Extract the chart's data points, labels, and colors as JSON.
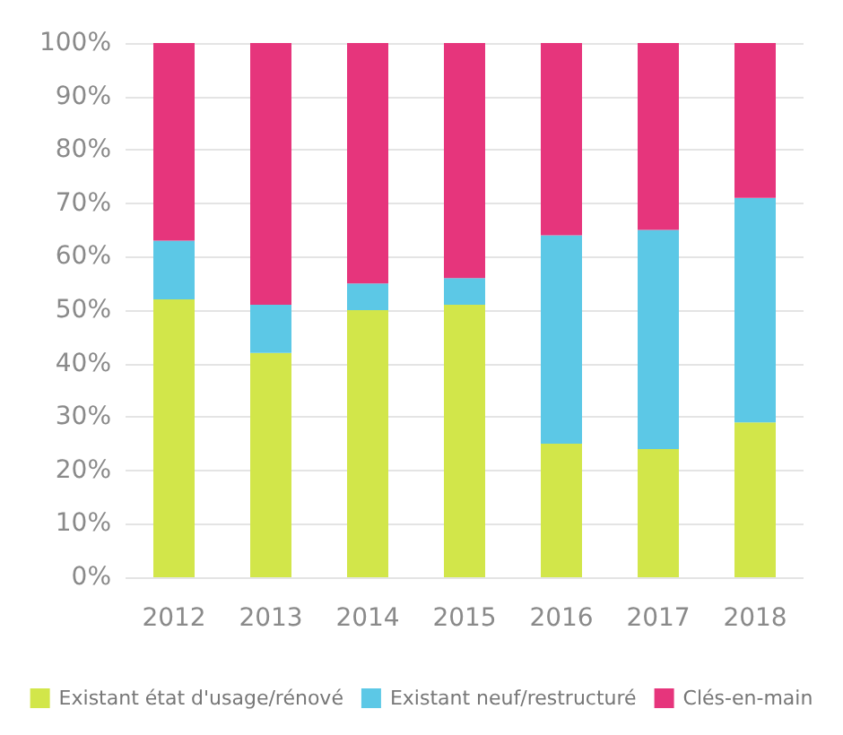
{
  "chart_data": {
    "type": "bar",
    "stacked": true,
    "categories": [
      "2012",
      "2013",
      "2014",
      "2015",
      "2016",
      "2017",
      "2018"
    ],
    "series": [
      {
        "name": "Existant état d'usage/rénové",
        "color": "#d2e64a",
        "values": [
          52,
          42,
          50,
          51,
          25,
          24,
          29
        ]
      },
      {
        "name": "Existant neuf/restructuré",
        "color": "#5cc8e6",
        "values": [
          11,
          9,
          5,
          5,
          39,
          41,
          42
        ]
      },
      {
        "name": "Clés-en-main",
        "color": "#e6357c",
        "values": [
          37,
          49,
          45,
          44,
          36,
          35,
          29
        ]
      }
    ],
    "ylim": [
      0,
      100
    ],
    "yticks": [
      {
        "value": 0,
        "label": "0%"
      },
      {
        "value": 10,
        "label": "10%"
      },
      {
        "value": 20,
        "label": "20%"
      },
      {
        "value": 30,
        "label": "30%"
      },
      {
        "value": 40,
        "label": "40%"
      },
      {
        "value": 50,
        "label": "50%"
      },
      {
        "value": 60,
        "label": "60%"
      },
      {
        "value": 70,
        "label": "70%"
      },
      {
        "value": 80,
        "label": "80%"
      },
      {
        "value": 90,
        "label": "90%"
      },
      {
        "value": 100,
        "label": "100%"
      }
    ],
    "grid": "y",
    "legend": "bottom"
  }
}
